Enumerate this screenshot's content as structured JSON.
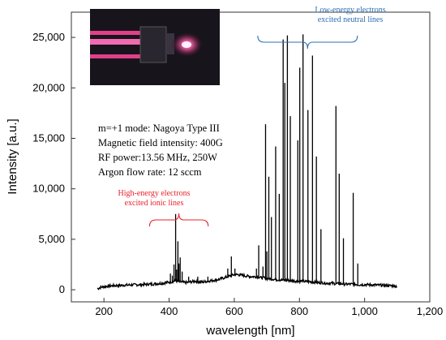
{
  "chart_data": {
    "type": "line",
    "title": "",
    "xlabel": "wavelength [nm]",
    "ylabel": "Intensity [a.u.]",
    "xlim": [
      100,
      1200
    ],
    "ylim": [
      -1200,
      27500
    ],
    "x_ticks": [
      200,
      400,
      600,
      800,
      1000,
      1200
    ],
    "x_tick_labels": [
      "200",
      "400",
      "600",
      "800",
      "1,000",
      "1,200"
    ],
    "y_ticks": [
      0,
      5000,
      10000,
      15000,
      20000,
      25000
    ],
    "y_tick_labels": [
      "0",
      "5,000",
      "10,000",
      "15,000",
      "20,000",
      "25,000"
    ],
    "grid": false,
    "legend": "none",
    "line_color": "#000000",
    "series": [
      {
        "x": [
          180,
          190,
          200,
          210,
          220,
          230,
          240,
          250,
          260,
          270,
          280,
          290,
          300,
          310,
          320,
          330,
          340,
          350,
          360,
          370,
          380,
          390,
          400,
          410,
          420,
          430,
          440,
          450,
          460,
          470,
          480,
          490,
          500,
          510,
          520,
          530,
          540,
          550,
          560,
          570,
          580,
          590,
          600,
          610,
          620,
          630,
          640,
          650,
          660,
          670,
          680,
          690,
          700,
          710,
          720,
          730,
          740,
          750,
          760,
          770,
          780,
          790,
          800,
          810,
          820,
          830,
          840,
          850,
          860,
          870,
          880,
          890,
          900,
          910,
          920,
          930,
          940,
          950,
          960,
          970,
          980,
          990,
          1000,
          1010,
          1020,
          1030,
          1040,
          1050,
          1060,
          1070,
          1080,
          1090,
          1100
        ],
        "y": [
          100,
          250,
          300,
          350,
          380,
          400,
          420,
          430,
          450,
          460,
          480,
          480,
          500,
          500,
          520,
          540,
          560,
          560,
          600,
          620,
          650,
          700,
          750,
          800,
          900,
          800,
          750,
          700,
          750,
          800,
          850,
          800,
          750,
          800,
          850,
          900,
          950,
          1000,
          1100,
          1200,
          1300,
          1400,
          1500,
          1500,
          1450,
          1400,
          1350,
          1300,
          1300,
          1300,
          1200,
          1200,
          1100,
          1100,
          1050,
          1000,
          1000,
          950,
          950,
          900,
          900,
          850,
          850,
          850,
          800,
          800,
          750,
          750,
          700,
          700,
          650,
          650,
          650,
          600,
          600,
          600,
          550,
          550,
          550,
          550,
          500,
          500,
          500,
          500,
          480,
          480,
          450,
          450,
          430,
          420,
          400,
          380,
          350
        ]
      }
    ],
    "peaks": [
      {
        "x": 404,
        "y": 1600
      },
      {
        "x": 410,
        "y": 1400
      },
      {
        "x": 415,
        "y": 2500
      },
      {
        "x": 420,
        "y": 7500
      },
      {
        "x": 423,
        "y": 2000
      },
      {
        "x": 427,
        "y": 4800
      },
      {
        "x": 430,
        "y": 2600
      },
      {
        "x": 434,
        "y": 3200
      },
      {
        "x": 440,
        "y": 1800
      },
      {
        "x": 460,
        "y": 1300
      },
      {
        "x": 488,
        "y": 1300
      },
      {
        "x": 519,
        "y": 1300
      },
      {
        "x": 580,
        "y": 2100
      },
      {
        "x": 591,
        "y": 3300
      },
      {
        "x": 602,
        "y": 2100
      },
      {
        "x": 617,
        "y": 1600
      },
      {
        "x": 668,
        "y": 2100
      },
      {
        "x": 675,
        "y": 4400
      },
      {
        "x": 688,
        "y": 2300
      },
      {
        "x": 696,
        "y": 16400
      },
      {
        "x": 700,
        "y": 3800
      },
      {
        "x": 706,
        "y": 11200
      },
      {
        "x": 714,
        "y": 7200
      },
      {
        "x": 727,
        "y": 14200
      },
      {
        "x": 738,
        "y": 9500
      },
      {
        "x": 750,
        "y": 24800
      },
      {
        "x": 755,
        "y": 20500
      },
      {
        "x": 763,
        "y": 25200
      },
      {
        "x": 772,
        "y": 17200
      },
      {
        "x": 795,
        "y": 14800
      },
      {
        "x": 801,
        "y": 22000
      },
      {
        "x": 811,
        "y": 25300
      },
      {
        "x": 826,
        "y": 17800
      },
      {
        "x": 840,
        "y": 23200
      },
      {
        "x": 852,
        "y": 13200
      },
      {
        "x": 866,
        "y": 6000
      },
      {
        "x": 912,
        "y": 18200
      },
      {
        "x": 922,
        "y": 11500
      },
      {
        "x": 935,
        "y": 5100
      },
      {
        "x": 965,
        "y": 9600
      },
      {
        "x": 979,
        "y": 2600
      }
    ],
    "annotations": [
      {
        "text": [
          "m=+1 mode: Nagoya Type III",
          "Magnetic field intensity: 400G",
          "RF power:13.56 MHz, 250W",
          "Argon flow rate: 12 sccm"
        ]
      },
      {
        "text": [
          "High-energy electrons",
          "excited ionic lines"
        ],
        "color": "#e8202a",
        "range": [
          340,
          520
        ]
      },
      {
        "text": [
          "Low-energy electrons",
          "excited neutral lines"
        ],
        "color": "#2e6db4",
        "range": [
          672,
          978
        ]
      }
    ],
    "inset_photo": {
      "color_bg": "#1a1520",
      "color_glow": "#e0408a"
    }
  }
}
